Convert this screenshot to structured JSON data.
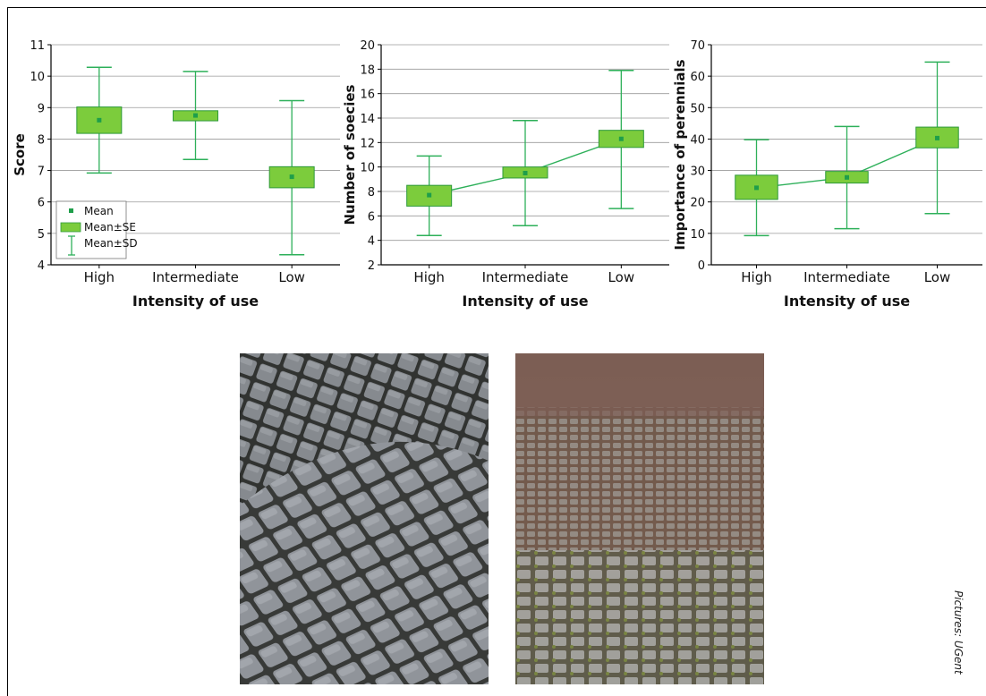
{
  "colors": {
    "box_fill": "#7ccc3c",
    "box_stroke": "#2e9a3a",
    "whisker": "#2eb05a",
    "mean_marker": "#1f9e4a",
    "grid": "#9a9a9a"
  },
  "legend": {
    "mean": "Mean",
    "se": "Mean±SE",
    "sd": "Mean±SD"
  },
  "credit": "Pictures: UGent",
  "chart_data": [
    {
      "type": "box",
      "xlabel": "Intensity of use",
      "ylabel": "Score",
      "ylim": [
        4,
        11
      ],
      "yticks": [
        4,
        5,
        6,
        7,
        8,
        9,
        10,
        11
      ],
      "categories": [
        "High",
        "Intermediate",
        "Low"
      ],
      "mean": [
        8.6,
        8.75,
        6.8
      ],
      "se": [
        [
          8.18,
          9.02
        ],
        [
          8.58,
          8.9
        ],
        [
          6.45,
          7.12
        ]
      ],
      "sd": [
        [
          6.92,
          10.28
        ],
        [
          7.35,
          10.15
        ],
        [
          4.32,
          9.22
        ]
      ],
      "connect_means": false,
      "legend": true
    },
    {
      "type": "box",
      "xlabel": "Intensity of use",
      "ylabel": "Number of soecies",
      "ylim": [
        2,
        20
      ],
      "yticks": [
        2,
        4,
        6,
        8,
        10,
        12,
        14,
        16,
        18,
        20
      ],
      "categories": [
        "High",
        "Intermediate",
        "Low"
      ],
      "mean": [
        7.7,
        9.5,
        12.3
      ],
      "se": [
        [
          6.8,
          8.5
        ],
        [
          9.1,
          10.0
        ],
        [
          11.6,
          13.0
        ]
      ],
      "sd": [
        [
          4.4,
          10.9
        ],
        [
          5.2,
          13.8
        ],
        [
          6.6,
          17.9
        ]
      ],
      "connect_means": true,
      "legend": false
    },
    {
      "type": "box",
      "xlabel": "Intensity of use",
      "ylabel": "Importance of perennials",
      "ylim": [
        0,
        70
      ],
      "yticks": [
        0,
        10,
        20,
        30,
        40,
        50,
        60,
        70
      ],
      "categories": [
        "High",
        "Intermediate",
        "Low"
      ],
      "mean": [
        24.5,
        27.8,
        40.3
      ],
      "se": [
        [
          20.8,
          28.5
        ],
        [
          26.0,
          29.7
        ],
        [
          37.2,
          43.8
        ]
      ],
      "sd": [
        [
          9.3,
          39.8
        ],
        [
          11.5,
          44.0
        ],
        [
          16.3,
          64.5
        ]
      ],
      "connect_means": true,
      "legend": false
    }
  ]
}
